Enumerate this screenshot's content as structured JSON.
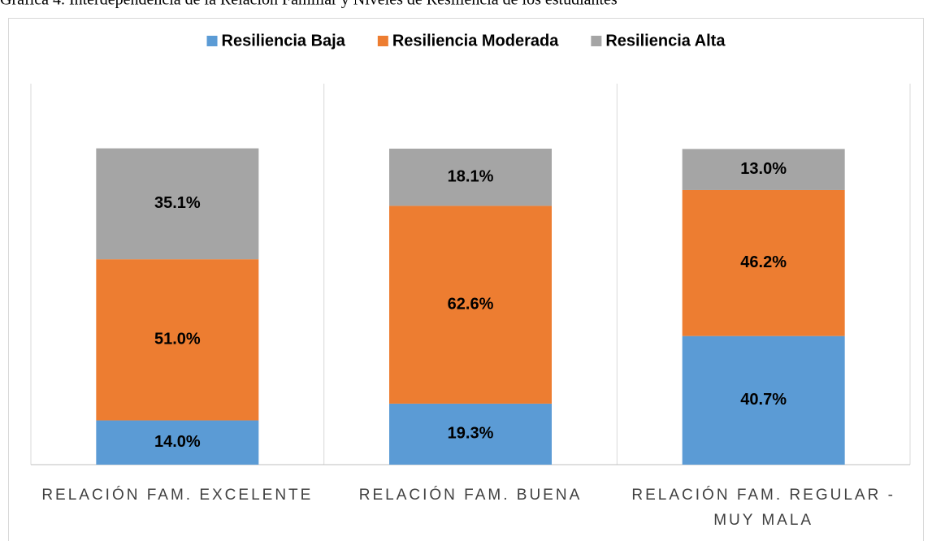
{
  "chart_data": {
    "type": "stacked_bar",
    "title": "Gráfica 4. Interdependencia de la Relación Familiar y Niveles de Resiliencia de los estudiantes",
    "categories": [
      "RELACIÓN FAM. EXCELENTE",
      "RELACIÓN FAM. BUENA",
      "RELACIÓN FAM. REGULAR - MUY MALA"
    ],
    "series": [
      {
        "name": "Resiliencia Baja",
        "color": "#5b9bd5",
        "values": [
          14.0,
          19.3,
          40.7
        ],
        "value_labels": [
          "14.0%",
          "19.3%",
          "40.7%"
        ]
      },
      {
        "name": "Resiliencia Moderada",
        "color": "#ed7d31",
        "values": [
          51.0,
          62.6,
          46.2
        ],
        "value_labels": [
          "51.0%",
          "62.6%",
          "46.2%"
        ]
      },
      {
        "name": "Resiliencia Alta",
        "color": "#a5a5a5",
        "values": [
          35.1,
          18.1,
          13.0
        ],
        "value_labels": [
          "35.1%",
          "18.1%",
          "13.0%"
        ]
      }
    ],
    "ylim": [
      0,
      100
    ]
  }
}
